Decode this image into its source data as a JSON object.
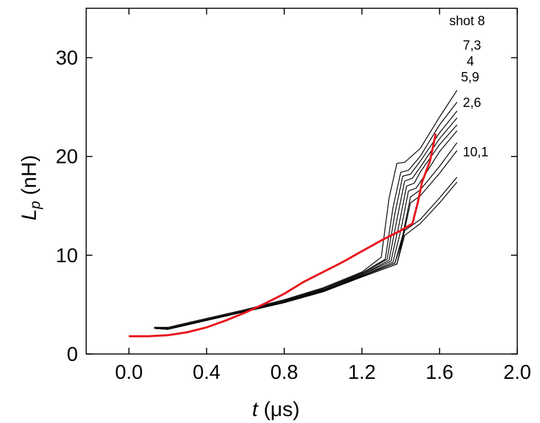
{
  "chart_data": {
    "type": "line",
    "xlabel": {
      "symbol": "t",
      "unit": " (μs)"
    },
    "ylabel": {
      "symbol": "L",
      "subscript": "p",
      "unit": " (nH)"
    },
    "xlim": [
      -0.22,
      2.0
    ],
    "ylim": [
      0,
      35
    ],
    "xticks": [
      {
        "value": 0.0,
        "label": "0.0"
      },
      {
        "value": 0.4,
        "label": "0.4"
      },
      {
        "value": 0.8,
        "label": "0.8"
      },
      {
        "value": 1.2,
        "label": "1.2"
      },
      {
        "value": 1.6,
        "label": "1.6"
      },
      {
        "value": 2.0,
        "label": "2.0"
      }
    ],
    "yticks": [
      {
        "value": 0,
        "label": "0"
      },
      {
        "value": 10,
        "label": "10"
      },
      {
        "value": 20,
        "label": "20"
      },
      {
        "value": 30,
        "label": "30"
      }
    ],
    "grid": false,
    "colors": {
      "measured": "#000000",
      "model": "#e8141c"
    },
    "annotations": [
      {
        "text": "shot 8",
        "x": 1.65,
        "y": 33.3
      },
      {
        "text": "7,3",
        "x": 1.72,
        "y": 30.8
      },
      {
        "text": "4",
        "x": 1.74,
        "y": 29.2
      },
      {
        "text": "5,9",
        "x": 1.71,
        "y": 27.6
      },
      {
        "text": "2,6",
        "x": 1.72,
        "y": 25.0
      },
      {
        "text": "10,1",
        "x": 1.72,
        "y": 20.0
      }
    ],
    "series": [
      {
        "style": "measured",
        "x": [
          0.13,
          0.2,
          0.4,
          0.6,
          0.8,
          1.0,
          1.2,
          1.3,
          1.34,
          1.38,
          1.42,
          1.5,
          1.6,
          1.69
        ],
        "y": [
          2.7,
          2.7,
          3.6,
          4.5,
          5.5,
          6.7,
          8.3,
          9.8,
          15.8,
          19.3,
          19.4,
          20.8,
          24.0,
          26.7
        ]
      },
      {
        "style": "measured",
        "x": [
          0.13,
          0.2,
          0.4,
          0.6,
          0.8,
          1.0,
          1.2,
          1.32,
          1.36,
          1.4,
          1.44,
          1.5,
          1.6,
          1.69
        ],
        "y": [
          2.6,
          2.6,
          3.5,
          4.4,
          5.4,
          6.6,
          8.2,
          9.6,
          14.8,
          18.4,
          18.6,
          20.0,
          23.2,
          25.5
        ]
      },
      {
        "style": "measured",
        "x": [
          0.13,
          0.2,
          0.4,
          0.6,
          0.8,
          1.0,
          1.2,
          1.33,
          1.37,
          1.41,
          1.45,
          1.5,
          1.6,
          1.69
        ],
        "y": [
          2.7,
          2.6,
          3.5,
          4.4,
          5.4,
          6.6,
          8.1,
          9.6,
          14.2,
          18.0,
          18.2,
          19.5,
          22.4,
          24.6
        ]
      },
      {
        "style": "measured",
        "x": [
          0.13,
          0.2,
          0.4,
          0.6,
          0.8,
          1.0,
          1.2,
          1.34,
          1.38,
          1.42,
          1.46,
          1.5,
          1.6,
          1.69
        ],
        "y": [
          2.6,
          2.5,
          3.4,
          4.3,
          5.3,
          6.5,
          8.0,
          9.5,
          13.6,
          17.5,
          17.8,
          18.9,
          21.8,
          23.9
        ]
      },
      {
        "style": "measured",
        "x": [
          0.13,
          0.2,
          0.4,
          0.6,
          0.8,
          1.0,
          1.2,
          1.35,
          1.39,
          1.43,
          1.47,
          1.5,
          1.6,
          1.69
        ],
        "y": [
          2.6,
          2.5,
          3.4,
          4.3,
          5.3,
          6.5,
          8.0,
          9.4,
          13.0,
          17.0,
          17.3,
          18.4,
          21.2,
          23.2
        ]
      },
      {
        "style": "measured",
        "x": [
          0.13,
          0.2,
          0.4,
          0.6,
          0.8,
          1.0,
          1.2,
          1.36,
          1.4,
          1.44,
          1.48,
          1.52,
          1.6,
          1.69
        ],
        "y": [
          2.6,
          2.5,
          3.4,
          4.3,
          5.2,
          6.4,
          7.9,
          9.3,
          12.5,
          16.5,
          16.8,
          18.0,
          20.5,
          22.6
        ]
      },
      {
        "style": "measured",
        "x": [
          0.13,
          0.2,
          0.4,
          0.6,
          0.8,
          1.0,
          1.2,
          1.37,
          1.41,
          1.45,
          1.5,
          1.6,
          1.69
        ],
        "y": [
          2.6,
          2.5,
          3.4,
          4.3,
          5.2,
          6.4,
          7.9,
          9.2,
          12.0,
          15.9,
          16.6,
          19.0,
          21.4
        ]
      },
      {
        "style": "measured",
        "x": [
          0.13,
          0.2,
          0.4,
          0.6,
          0.8,
          1.0,
          1.2,
          1.37,
          1.41,
          1.45,
          1.5,
          1.6,
          1.69
        ],
        "y": [
          2.6,
          2.5,
          3.4,
          4.3,
          5.2,
          6.4,
          7.9,
          9.2,
          11.7,
          15.3,
          16.0,
          18.3,
          20.6
        ]
      },
      {
        "style": "measured",
        "x": [
          0.13,
          0.2,
          0.4,
          0.6,
          0.8,
          1.0,
          1.2,
          1.38,
          1.42,
          1.5,
          1.6,
          1.69
        ],
        "y": [
          2.6,
          2.5,
          3.4,
          4.3,
          5.2,
          6.3,
          7.8,
          9.1,
          12.5,
          13.6,
          15.8,
          17.9
        ]
      },
      {
        "style": "measured",
        "x": [
          0.13,
          0.2,
          0.4,
          0.6,
          0.8,
          1.0,
          1.2,
          1.38,
          1.42,
          1.5,
          1.6,
          1.69
        ],
        "y": [
          2.6,
          2.5,
          3.4,
          4.3,
          5.2,
          6.3,
          7.8,
          9.1,
          12.0,
          13.2,
          15.3,
          17.4
        ]
      },
      {
        "style": "model",
        "x": [
          0.0,
          0.1,
          0.2,
          0.3,
          0.4,
          0.5,
          0.6,
          0.7,
          0.8,
          0.9,
          1.0,
          1.1,
          1.2,
          1.3,
          1.4,
          1.46,
          1.49,
          1.51,
          1.55,
          1.58
        ],
        "y": [
          1.8,
          1.8,
          1.9,
          2.2,
          2.7,
          3.4,
          4.2,
          5.1,
          6.1,
          7.3,
          8.3,
          9.3,
          10.4,
          11.5,
          12.5,
          13.2,
          15.5,
          17.4,
          19.5,
          22.3
        ]
      }
    ]
  }
}
